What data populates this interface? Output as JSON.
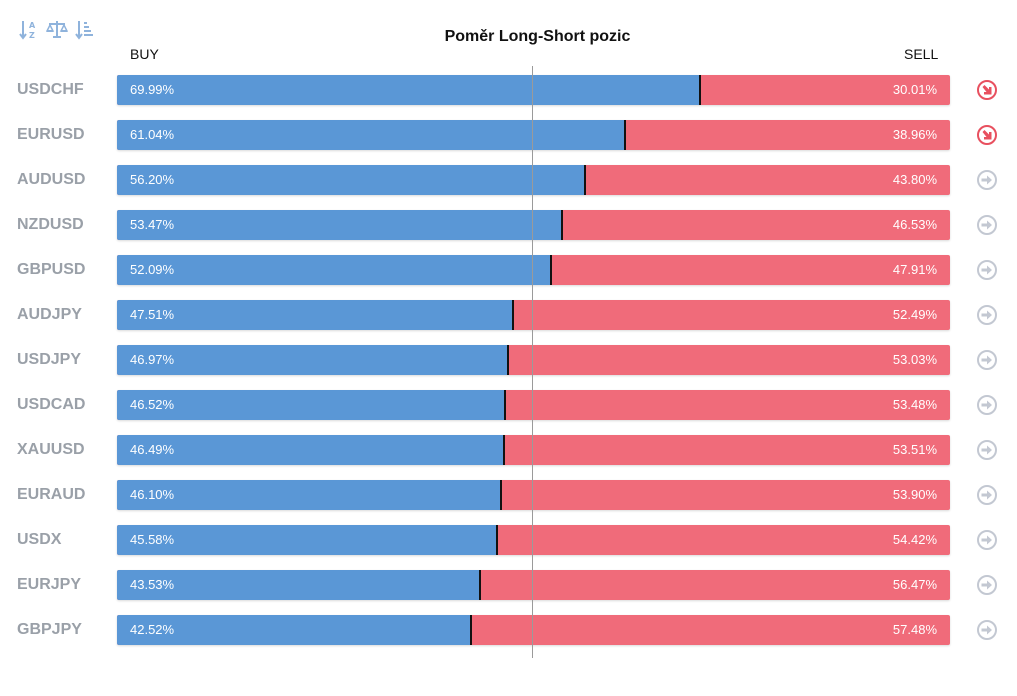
{
  "toolbar": {
    "icons": [
      "sort-alpha-icon",
      "balance-scale-icon",
      "sort-amount-icon"
    ]
  },
  "chart_data": {
    "type": "bar",
    "title": "Poměr Long-Short pozic",
    "left_label": "BUY",
    "right_label": "SELL",
    "categories": [
      "USDCHF",
      "EURUSD",
      "AUDUSD",
      "NZDUSD",
      "GBPUSD",
      "AUDJPY",
      "USDJPY",
      "USDCAD",
      "XAUUSD",
      "EURAUD",
      "USDX",
      "EURJPY",
      "GBPJPY"
    ],
    "series": [
      {
        "name": "BUY",
        "values": [
          69.99,
          61.04,
          56.2,
          53.47,
          52.09,
          47.51,
          46.97,
          46.52,
          46.49,
          46.1,
          45.58,
          43.53,
          42.52
        ]
      },
      {
        "name": "SELL",
        "values": [
          30.01,
          38.96,
          43.8,
          46.53,
          47.91,
          52.49,
          53.03,
          53.48,
          53.51,
          53.9,
          54.42,
          56.47,
          57.48
        ]
      }
    ],
    "buy_labels": [
      "69.99%",
      "61.04%",
      "56.20%",
      "53.47%",
      "52.09%",
      "47.51%",
      "46.97%",
      "46.52%",
      "46.49%",
      "46.10%",
      "45.58%",
      "43.53%",
      "42.52%"
    ],
    "sell_labels": [
      "30.01%",
      "38.96%",
      "43.80%",
      "46.53%",
      "47.91%",
      "52.49%",
      "53.03%",
      "53.48%",
      "53.51%",
      "53.90%",
      "54.42%",
      "56.47%",
      "57.48%"
    ],
    "signals": [
      "down",
      "down",
      "neutral",
      "neutral",
      "neutral",
      "neutral",
      "neutral",
      "neutral",
      "neutral",
      "neutral",
      "neutral",
      "neutral",
      "neutral"
    ],
    "reference_line": 50,
    "xlim": [
      0,
      100
    ],
    "colors": {
      "buy": "#5a97d6",
      "sell": "#f06b7a",
      "signal_down": "#e8505f",
      "signal_neutral": "#c3c8d2",
      "symbol_text": "#9aa0a8"
    }
  }
}
